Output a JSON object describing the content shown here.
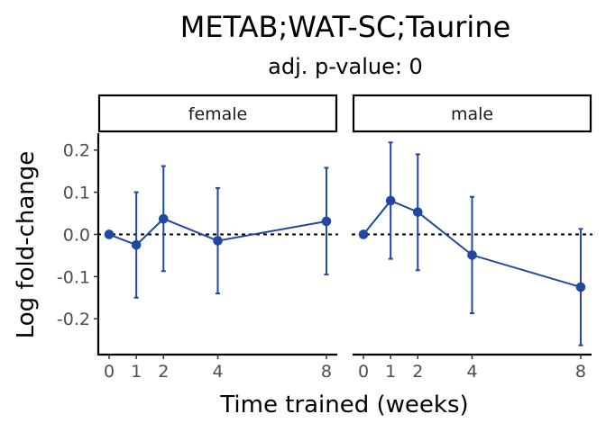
{
  "chart_data": {
    "type": "line",
    "title": "METAB;WAT-SC;Taurine",
    "subtitle": "adj. p-value: 0",
    "xlabel": "Time trained (weeks)",
    "ylabel": "Log fold-change",
    "xlim": [
      -0.4,
      8.4
    ],
    "ylim": [
      -0.285,
      0.24
    ],
    "x_ticks": [
      0,
      1,
      2,
      4,
      8
    ],
    "y_ticks": [
      {
        "value": 0.2,
        "label": "0.2"
      },
      {
        "value": 0.1,
        "label": "0.1"
      },
      {
        "value": 0.0,
        "label": "0.0"
      },
      {
        "value": -0.1,
        "label": "-0.1"
      },
      {
        "value": -0.2,
        "label": "-0.2"
      }
    ],
    "reference_line": 0,
    "color": "#2148a0",
    "panels": [
      {
        "label": "female",
        "points": [
          {
            "x": 0,
            "y": 0.0,
            "lo": 0.0,
            "hi": 0.0
          },
          {
            "x": 1,
            "y": -0.025,
            "lo": -0.15,
            "hi": 0.1
          },
          {
            "x": 2,
            "y": 0.037,
            "lo": -0.087,
            "hi": 0.162
          },
          {
            "x": 4,
            "y": -0.015,
            "lo": -0.14,
            "hi": 0.11
          },
          {
            "x": 8,
            "y": 0.031,
            "lo": -0.095,
            "hi": 0.158
          }
        ]
      },
      {
        "label": "male",
        "points": [
          {
            "x": 0,
            "y": 0.0,
            "lo": 0.0,
            "hi": 0.0
          },
          {
            "x": 1,
            "y": 0.08,
            "lo": -0.058,
            "hi": 0.218
          },
          {
            "x": 2,
            "y": 0.053,
            "lo": -0.085,
            "hi": 0.19
          },
          {
            "x": 4,
            "y": -0.049,
            "lo": -0.187,
            "hi": 0.089
          },
          {
            "x": 8,
            "y": -0.125,
            "lo": -0.263,
            "hi": 0.013
          }
        ]
      }
    ]
  }
}
